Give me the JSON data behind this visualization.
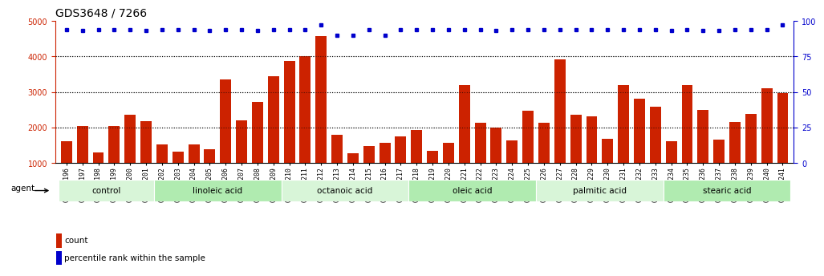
{
  "title": "GDS3648 / 7266",
  "categories": [
    "GSM525196",
    "GSM525197",
    "GSM525198",
    "GSM525199",
    "GSM525200",
    "GSM525201",
    "GSM525202",
    "GSM525203",
    "GSM525204",
    "GSM525205",
    "GSM525206",
    "GSM525207",
    "GSM525208",
    "GSM525209",
    "GSM525210",
    "GSM525211",
    "GSM525212",
    "GSM525213",
    "GSM525214",
    "GSM525215",
    "GSM525216",
    "GSM525217",
    "GSM525218",
    "GSM525219",
    "GSM525220",
    "GSM525221",
    "GSM525222",
    "GSM525223",
    "GSM525224",
    "GSM525225",
    "GSM525226",
    "GSM525227",
    "GSM525228",
    "GSM525229",
    "GSM525230",
    "GSM525231",
    "GSM525232",
    "GSM525233",
    "GSM525234",
    "GSM525235",
    "GSM525236",
    "GSM525237",
    "GSM525238",
    "GSM525239",
    "GSM525240",
    "GSM525241"
  ],
  "bar_values": [
    1620,
    2040,
    1300,
    2030,
    2350,
    2180,
    1520,
    1320,
    1530,
    1380,
    3350,
    2200,
    2720,
    3450,
    3870,
    4000,
    4580,
    1800,
    1280,
    1480,
    1560,
    1750,
    1920,
    1350,
    1560,
    3200,
    2120,
    1990,
    1640,
    2470,
    2130,
    3920,
    2350,
    2310,
    1670,
    3200,
    2800,
    2580,
    1620,
    3200,
    2490,
    1650,
    2150,
    2380,
    3100,
    2970
  ],
  "percentile_values": [
    94,
    93,
    94,
    94,
    94,
    93,
    94,
    94,
    94,
    93,
    94,
    94,
    93,
    94,
    94,
    94,
    97,
    90,
    90,
    94,
    90,
    94,
    94,
    94,
    94,
    94,
    94,
    93,
    94,
    94,
    94,
    94,
    94,
    94,
    94,
    94,
    94,
    94,
    93,
    94,
    93,
    93,
    94,
    94,
    94,
    97
  ],
  "groups": [
    {
      "label": "control",
      "start": 0,
      "end": 5
    },
    {
      "label": "linoleic acid",
      "start": 6,
      "end": 13
    },
    {
      "label": "octanoic acid",
      "start": 14,
      "end": 21
    },
    {
      "label": "oleic acid",
      "start": 22,
      "end": 29
    },
    {
      "label": "palmitic acid",
      "start": 30,
      "end": 37
    },
    {
      "label": "stearic acid",
      "start": 38,
      "end": 45
    }
  ],
  "group_colors": [
    "#d8f5d8",
    "#b0ebb0",
    "#d8f5d8",
    "#b0ebb0",
    "#d8f5d8",
    "#b0ebb0"
  ],
  "bar_color": "#cc2200",
  "dot_color": "#0000cc",
  "ylim_left": [
    1000,
    5000
  ],
  "ylim_right": [
    0,
    100
  ],
  "yticks_left": [
    1000,
    2000,
    3000,
    4000,
    5000
  ],
  "yticks_right": [
    0,
    25,
    50,
    75,
    100
  ],
  "background_color": "#ffffff",
  "title_fontsize": 10,
  "tick_fontsize": 7,
  "agent_label": "agent",
  "legend_count": "count",
  "legend_pct": "percentile rank within the sample",
  "left_spine_color": "#cc2200",
  "right_spine_color": "#0000cc"
}
